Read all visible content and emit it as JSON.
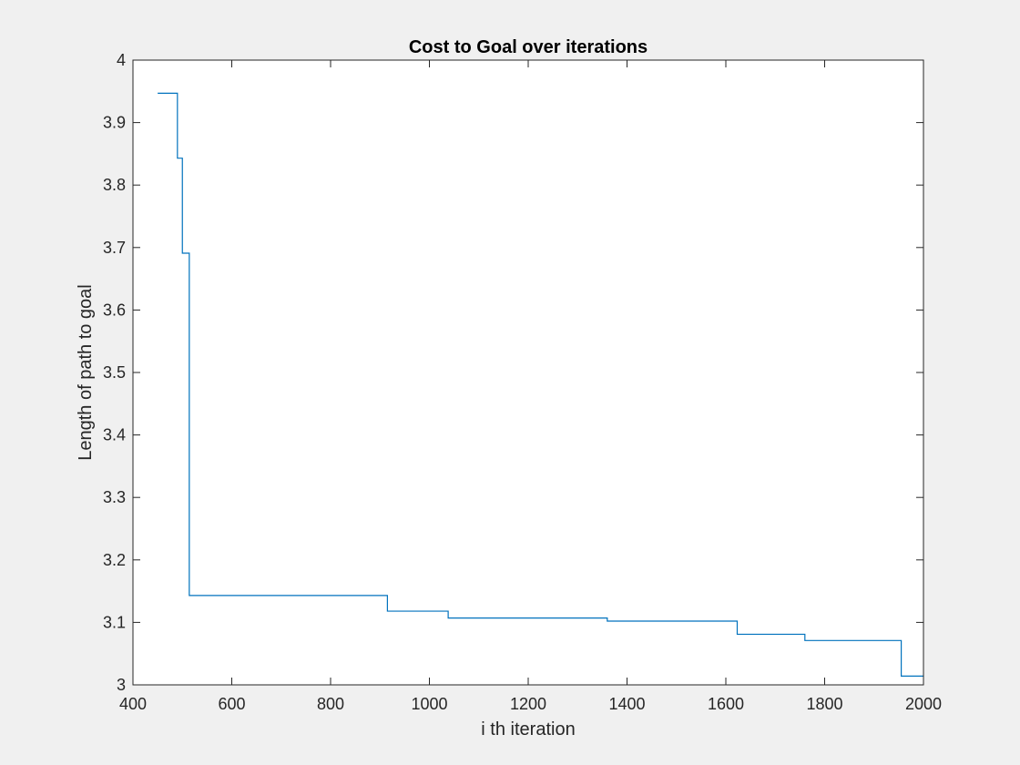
{
  "colors": {
    "figure_background": "#f0f0f0",
    "axes_background": "#ffffff",
    "axis_color": "#262626",
    "line_color": "#0072bd"
  },
  "chart_data": {
    "type": "line",
    "title": "Cost to Goal over iterations",
    "xlabel": "i th iteration",
    "ylabel": "Length of path to goal",
    "xlim": [
      400,
      2000
    ],
    "ylim": [
      3,
      4
    ],
    "xticks": [
      400,
      600,
      800,
      1000,
      1200,
      1400,
      1600,
      1800,
      2000
    ],
    "xtick_labels": [
      "400",
      "600",
      "800",
      "1000",
      "1200",
      "1400",
      "1600",
      "1800",
      "2000"
    ],
    "yticks": [
      3,
      3.1,
      3.2,
      3.3,
      3.4,
      3.5,
      3.6,
      3.7,
      3.8,
      3.9,
      4
    ],
    "ytick_labels": [
      "3",
      "3.1",
      "3.2",
      "3.3",
      "3.4",
      "3.5",
      "3.6",
      "3.7",
      "3.8",
      "3.9",
      "4"
    ],
    "grid": false,
    "box": true,
    "series": [
      {
        "step": "post",
        "x": [
          450,
          490,
          500,
          514,
          915,
          1038,
          1360,
          1623,
          1760,
          1955,
          2000
        ],
        "y": [
          3.947,
          3.843,
          3.691,
          3.143,
          3.118,
          3.107,
          3.102,
          3.081,
          3.071,
          3.014,
          3.014
        ]
      }
    ]
  }
}
